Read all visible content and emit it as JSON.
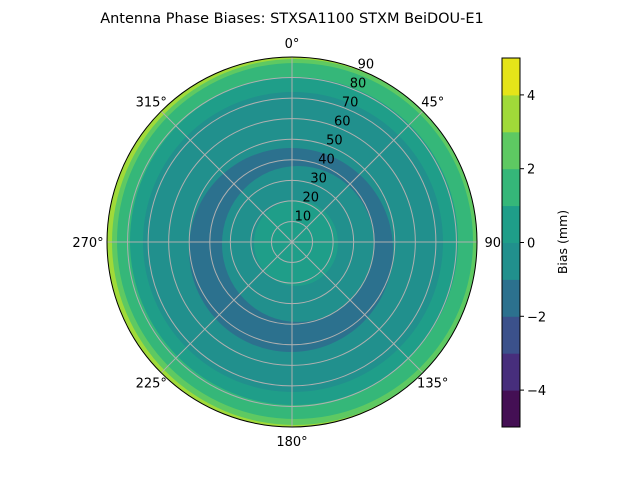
{
  "chart_data": {
    "type": "polar-contour",
    "title": "Antenna Phase Biases: STXSA1100       STXM BeiDOU-E1",
    "angle_ticks": [
      "0°",
      "45°",
      "90°",
      "135°",
      "180°",
      "225°",
      "270°",
      "315°"
    ],
    "angle_values": [
      0,
      45,
      90,
      135,
      180,
      225,
      270,
      315
    ],
    "radial_ticks": [
      "10",
      "20",
      "30",
      "40",
      "50",
      "60",
      "70",
      "80",
      "90"
    ],
    "radial_values": [
      10,
      20,
      30,
      40,
      50,
      60,
      70,
      80,
      90
    ],
    "rlim": [
      0,
      90
    ],
    "theta_direction": "clockwise",
    "theta_zero": "top",
    "grid": true,
    "colorbar": {
      "label": "Bias (mm)",
      "levels": [
        -5,
        -4,
        -3,
        -2,
        -1,
        0,
        1,
        2,
        3,
        4,
        5
      ],
      "colors": [
        "#440f54",
        "#472e7c",
        "#3b518b",
        "#2c718e",
        "#21908d",
        "#1f9e89",
        "#35b779",
        "#5ec962",
        "#a0da39",
        "#e5e419"
      ],
      "ticks": [
        4,
        2,
        0,
        -2,
        -4
      ],
      "tick_labels": [
        "4",
        "2",
        "0",
        "−2",
        "−4"
      ],
      "colormap": "viridis"
    },
    "regions": [
      {
        "band": [
          3,
          4
        ],
        "where": "thin rim on left/west edge near elevation 90"
      },
      {
        "band": [
          2,
          3
        ],
        "where": "outer rim, widest on west and south"
      },
      {
        "band": [
          1,
          2
        ],
        "where": "outer ring ~r 80-90"
      },
      {
        "band": [
          0,
          1
        ],
        "where": "ring ~r 72-82 and central disc r < ~20"
      },
      {
        "band": [
          -1,
          0
        ],
        "where": "background between r ~20 and ~72"
      },
      {
        "band": [
          -2,
          -1
        ],
        "where": "annular band ~r 25-50, thicker to south and west"
      }
    ]
  }
}
